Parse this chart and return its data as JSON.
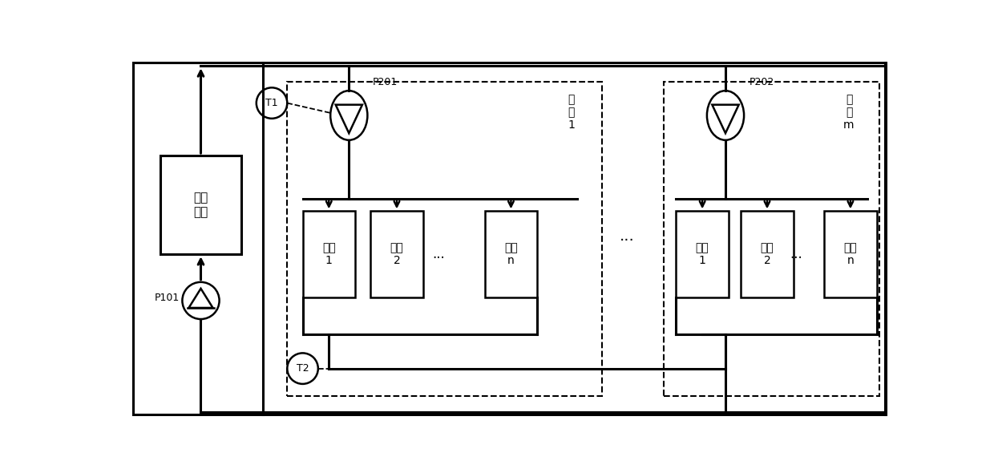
{
  "bg_color": "#ffffff",
  "fig_width": 12.4,
  "fig_height": 5.9,
  "chiller_label": "冷水\n机组",
  "p101_label": "P101",
  "p201_label": "P201",
  "p202_label": "P202",
  "t1_label": "T1",
  "t2_label": "T2",
  "zone1_label": "分\n区\n1",
  "zonem_label": "分\n区\nm",
  "ac1_label": "空调\n1",
  "ac2_label": "空调\n2",
  "acn_label": "空调\nn",
  "dots": "..."
}
